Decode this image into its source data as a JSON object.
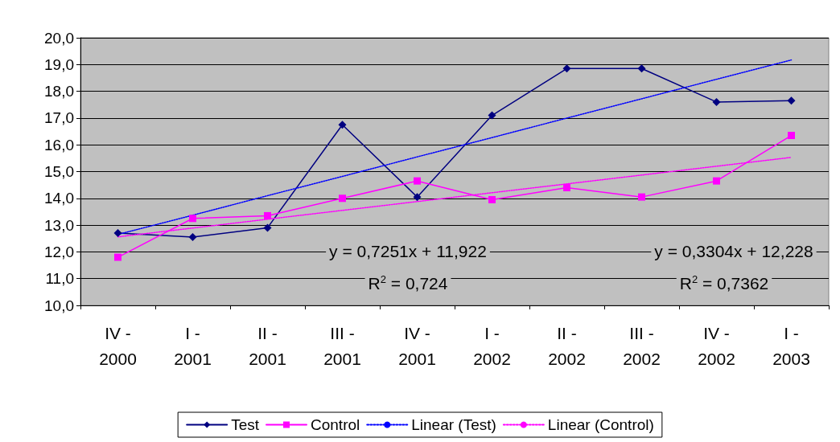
{
  "chart_data": {
    "type": "line",
    "categories": [
      "IV -\n2000",
      "I -\n2001",
      "II -\n2001",
      "III -\n2001",
      "IV -\n2001",
      "I -\n2002",
      "II -\n2002",
      "III -\n2002",
      "IV -\n2002",
      "I -\n2003"
    ],
    "series": [
      {
        "name": "Test",
        "color": "#000080",
        "marker": "diamond",
        "line_style": "solid",
        "values": [
          12.7,
          12.55,
          12.9,
          16.75,
          14.05,
          17.1,
          18.85,
          18.85,
          17.6,
          17.65
        ]
      },
      {
        "name": "Control",
        "color": "#ff00ff",
        "marker": "square",
        "line_style": "solid",
        "values": [
          11.8,
          13.25,
          13.35,
          14.0,
          14.65,
          13.95,
          14.4,
          14.05,
          14.65,
          16.35
        ]
      },
      {
        "name": "Linear (Test)",
        "color": "#0000ff",
        "marker": "none",
        "line_style": "dotted",
        "values": [
          12.65,
          13.37,
          14.1,
          14.82,
          15.55,
          16.27,
          17.0,
          17.72,
          18.45,
          19.17
        ]
      },
      {
        "name": "Linear (Control)",
        "color": "#ff00ff",
        "marker": "none",
        "line_style": "dotted",
        "values": [
          12.56,
          12.89,
          13.22,
          13.55,
          13.88,
          14.21,
          14.54,
          14.87,
          15.2,
          15.53
        ]
      }
    ],
    "ylim": [
      10,
      20
    ],
    "yticks": [
      {
        "value": 10,
        "label": "10,0"
      },
      {
        "value": 11,
        "label": "11,0"
      },
      {
        "value": 12,
        "label": "12,0"
      },
      {
        "value": 13,
        "label": "13,0"
      },
      {
        "value": 14,
        "label": "14,0"
      },
      {
        "value": 15,
        "label": "15,0"
      },
      {
        "value": 16,
        "label": "16,0"
      },
      {
        "value": 17,
        "label": "17,0"
      },
      {
        "value": 18,
        "label": "18,0"
      },
      {
        "value": 19,
        "label": "19,0"
      },
      {
        "value": 20,
        "label": "20,0"
      }
    ],
    "grid": "y",
    "legend": "bottom",
    "annotations": [
      "y = 0,7251x + 11,922",
      "R$^{2}$ = 0,724",
      "y = 0,3304x + 12,228",
      "R$^{2}$ = 0,7362"
    ]
  }
}
